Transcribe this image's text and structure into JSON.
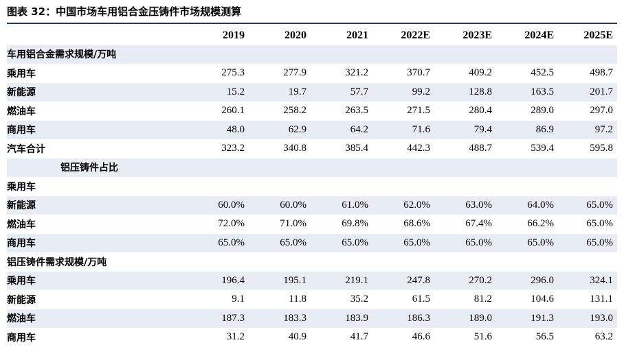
{
  "title": "图表 32：中国市场车用铝合金压铸件市场规模测算",
  "columns": [
    "2019",
    "2020",
    "2021",
    "2022E",
    "2023E",
    "2024E",
    "2025E"
  ],
  "rows": [
    {
      "label": "车用铝合金需求规模/万吨",
      "values": [
        "",
        "",
        "",
        "",
        "",
        "",
        ""
      ]
    },
    {
      "label": "乘用车",
      "values": [
        "275.3",
        "277.9",
        "321.2",
        "370.7",
        "409.2",
        "452.5",
        "498.7"
      ]
    },
    {
      "label": "新能源",
      "values": [
        "15.2",
        "19.7",
        "57.7",
        "99.2",
        "128.8",
        "163.5",
        "201.7"
      ]
    },
    {
      "label": "燃油车",
      "values": [
        "260.1",
        "258.2",
        "263.5",
        "271.5",
        "280.4",
        "289.0",
        "297.0"
      ]
    },
    {
      "label": "商用车",
      "values": [
        "48.0",
        "62.9",
        "64.2",
        "71.6",
        "79.4",
        "86.9",
        "97.2"
      ]
    },
    {
      "label": "汽车合计",
      "values": [
        "323.2",
        "340.8",
        "385.4",
        "442.3",
        "488.7",
        "539.4",
        "595.8"
      ]
    },
    {
      "label": "铝压铸件占比",
      "values": [
        "",
        "",
        "",
        "",
        "",
        "",
        ""
      ]
    },
    {
      "label": "乘用车",
      "values": [
        "",
        "",
        "",
        "",
        "",
        "",
        ""
      ]
    },
    {
      "label": "新能源",
      "values": [
        "60.0%",
        "60.0%",
        "61.0%",
        "62.0%",
        "63.0%",
        "64.0%",
        "65.0%"
      ]
    },
    {
      "label": "燃油车",
      "values": [
        "72.0%",
        "71.0%",
        "69.8%",
        "68.6%",
        "67.4%",
        "66.2%",
        "65.0%"
      ]
    },
    {
      "label": "商用车",
      "values": [
        "65.0%",
        "65.0%",
        "65.0%",
        "65.0%",
        "65.0%",
        "65.0%",
        "65.0%"
      ]
    },
    {
      "label": "铝压铸件需求规模/万吨",
      "values": [
        "",
        "",
        "",
        "",
        "",
        "",
        ""
      ]
    },
    {
      "label": "乘用车",
      "values": [
        "196.4",
        "195.1",
        "219.1",
        "247.8",
        "270.2",
        "296.0",
        "324.1"
      ]
    },
    {
      "label": "新能源",
      "values": [
        "9.1",
        "11.8",
        "35.2",
        "61.5",
        "81.2",
        "104.6",
        "131.1"
      ]
    },
    {
      "label": "燃油车",
      "values": [
        "187.3",
        "183.3",
        "183.9",
        "186.3",
        "189.0",
        "191.3",
        "193.0"
      ]
    },
    {
      "label": "商用车",
      "values": [
        "31.2",
        "40.9",
        "41.7",
        "46.6",
        "51.6",
        "56.5",
        "63.2"
      ]
    }
  ],
  "accent_color": "#1f3a6b",
  "shade_color": "#e8ecf4"
}
